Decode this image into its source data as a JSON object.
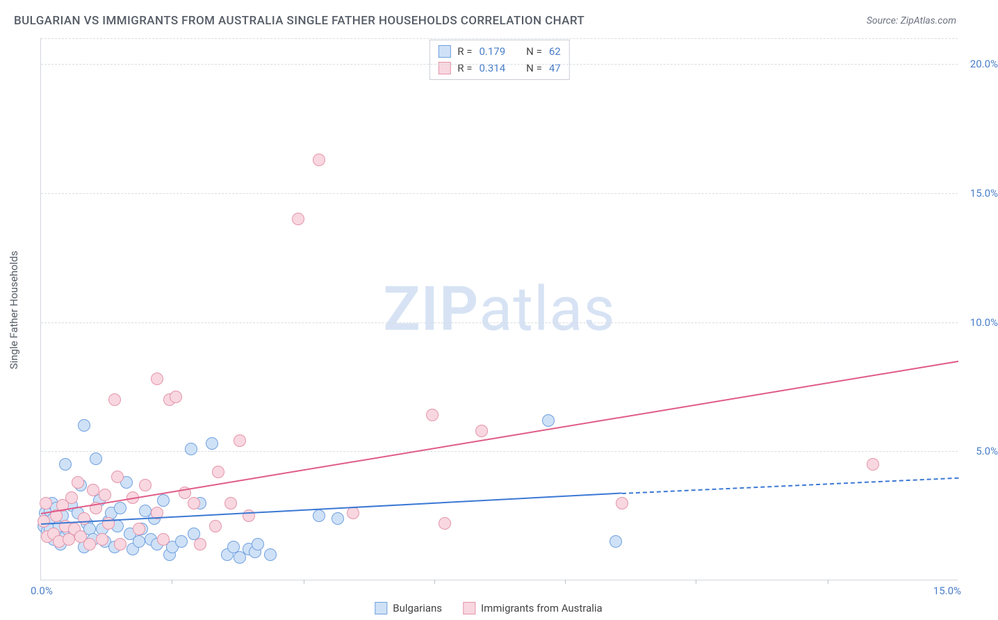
{
  "title": "BULGARIAN VS IMMIGRANTS FROM AUSTRALIA SINGLE FATHER HOUSEHOLDS CORRELATION CHART",
  "source": "Source: ZipAtlas.com",
  "ylabel": "Single Father Households",
  "watermark": {
    "bold": "ZIP",
    "rest": "atlas",
    "color": "#d7e3f4"
  },
  "chart": {
    "type": "scatter",
    "xlim": [
      0,
      15
    ],
    "ylim": [
      0,
      21
    ],
    "x_ticks_shown": [
      0,
      15
    ],
    "x_tick_labels": [
      "0.0%",
      "15.0%"
    ],
    "y_ticks": [
      5,
      10,
      15,
      20
    ],
    "y_tick_labels": [
      "5.0%",
      "10.0%",
      "15.0%",
      "20.0%"
    ],
    "x_minor_ticks": [
      2.14,
      4.29,
      6.43,
      8.57,
      10.71,
      12.86
    ],
    "grid_color": "#d7dce2",
    "background_color": "#ffffff",
    "marker_radius": 9,
    "marker_border_width": 1.5
  },
  "series": [
    {
      "name": "Bulgarians",
      "fill": "#cfe1f6",
      "stroke": "#6fa0e0",
      "line_color": "#3b78d4",
      "r_value": "0.179",
      "n_value": "62",
      "regression": {
        "x1": 0,
        "y1": 2.2,
        "x2": 9.5,
        "y2": 3.4,
        "dash_x_end": 15,
        "dash_y_end": 4.0
      },
      "points": [
        [
          0.05,
          2.1
        ],
        [
          0.07,
          2.6
        ],
        [
          0.1,
          1.9
        ],
        [
          0.12,
          2.3
        ],
        [
          0.15,
          2.0
        ],
        [
          0.15,
          2.7
        ],
        [
          0.18,
          3.0
        ],
        [
          0.2,
          1.6
        ],
        [
          0.2,
          2.4
        ],
        [
          0.25,
          2.8
        ],
        [
          0.3,
          2.1
        ],
        [
          0.32,
          1.4
        ],
        [
          0.35,
          2.5
        ],
        [
          0.4,
          4.5
        ],
        [
          0.4,
          1.7
        ],
        [
          0.43,
          2.0
        ],
        [
          0.5,
          2.9
        ],
        [
          0.55,
          1.9
        ],
        [
          0.6,
          2.6
        ],
        [
          0.65,
          3.7
        ],
        [
          0.7,
          6.0
        ],
        [
          0.7,
          1.3
        ],
        [
          0.75,
          2.2
        ],
        [
          0.8,
          2.0
        ],
        [
          0.85,
          1.6
        ],
        [
          0.9,
          4.7
        ],
        [
          0.95,
          3.1
        ],
        [
          1.0,
          2.0
        ],
        [
          1.05,
          1.5
        ],
        [
          1.1,
          2.3
        ],
        [
          1.15,
          2.6
        ],
        [
          1.2,
          1.3
        ],
        [
          1.25,
          2.1
        ],
        [
          1.3,
          2.8
        ],
        [
          1.4,
          3.8
        ],
        [
          1.45,
          1.8
        ],
        [
          1.5,
          1.2
        ],
        [
          1.6,
          1.5
        ],
        [
          1.65,
          2.0
        ],
        [
          1.7,
          2.7
        ],
        [
          1.8,
          1.6
        ],
        [
          1.85,
          2.4
        ],
        [
          1.9,
          1.4
        ],
        [
          2.0,
          3.1
        ],
        [
          2.1,
          1.0
        ],
        [
          2.15,
          1.3
        ],
        [
          2.3,
          1.5
        ],
        [
          2.45,
          5.1
        ],
        [
          2.5,
          1.8
        ],
        [
          2.6,
          3.0
        ],
        [
          2.8,
          5.3
        ],
        [
          3.05,
          1.0
        ],
        [
          3.15,
          1.3
        ],
        [
          3.25,
          0.9
        ],
        [
          3.4,
          1.2
        ],
        [
          3.5,
          1.1
        ],
        [
          3.55,
          1.4
        ],
        [
          3.75,
          1.0
        ],
        [
          4.55,
          2.5
        ],
        [
          4.85,
          2.4
        ],
        [
          8.3,
          6.2
        ],
        [
          9.4,
          1.5
        ]
      ]
    },
    {
      "name": "Immigrants from Australia",
      "fill": "#f8d7e0",
      "stroke": "#e494aa",
      "line_color": "#e05a87",
      "r_value": "0.314",
      "n_value": "47",
      "regression": {
        "x1": 0,
        "y1": 2.6,
        "x2": 15,
        "y2": 8.5
      },
      "points": [
        [
          0.05,
          2.3
        ],
        [
          0.08,
          3.0
        ],
        [
          0.1,
          1.7
        ],
        [
          0.2,
          1.8
        ],
        [
          0.25,
          2.5
        ],
        [
          0.3,
          1.5
        ],
        [
          0.35,
          2.9
        ],
        [
          0.4,
          2.1
        ],
        [
          0.45,
          1.6
        ],
        [
          0.5,
          3.2
        ],
        [
          0.55,
          2.0
        ],
        [
          0.6,
          3.8
        ],
        [
          0.65,
          1.7
        ],
        [
          0.7,
          2.4
        ],
        [
          0.8,
          1.4
        ],
        [
          0.85,
          3.5
        ],
        [
          0.9,
          2.8
        ],
        [
          1.0,
          1.6
        ],
        [
          1.05,
          3.3
        ],
        [
          1.1,
          2.2
        ],
        [
          1.2,
          7.0
        ],
        [
          1.25,
          4.0
        ],
        [
          1.3,
          1.4
        ],
        [
          1.5,
          3.2
        ],
        [
          1.6,
          2.0
        ],
        [
          1.7,
          3.7
        ],
        [
          1.9,
          7.8
        ],
        [
          1.9,
          2.6
        ],
        [
          2.0,
          1.6
        ],
        [
          2.1,
          7.0
        ],
        [
          2.2,
          7.1
        ],
        [
          2.35,
          3.4
        ],
        [
          2.5,
          3.0
        ],
        [
          2.6,
          1.4
        ],
        [
          2.85,
          2.1
        ],
        [
          2.9,
          4.2
        ],
        [
          3.1,
          3.0
        ],
        [
          3.25,
          5.4
        ],
        [
          3.4,
          2.5
        ],
        [
          4.2,
          14.0
        ],
        [
          4.55,
          16.3
        ],
        [
          5.1,
          2.6
        ],
        [
          6.4,
          6.4
        ],
        [
          6.6,
          2.2
        ],
        [
          7.2,
          5.8
        ],
        [
          9.5,
          3.0
        ],
        [
          13.6,
          4.5
        ]
      ]
    }
  ],
  "legend_bottom": [
    "Bulgarians",
    "Immigrants from Australia"
  ],
  "stats_labels": {
    "r": "R =",
    "n": "N ="
  }
}
